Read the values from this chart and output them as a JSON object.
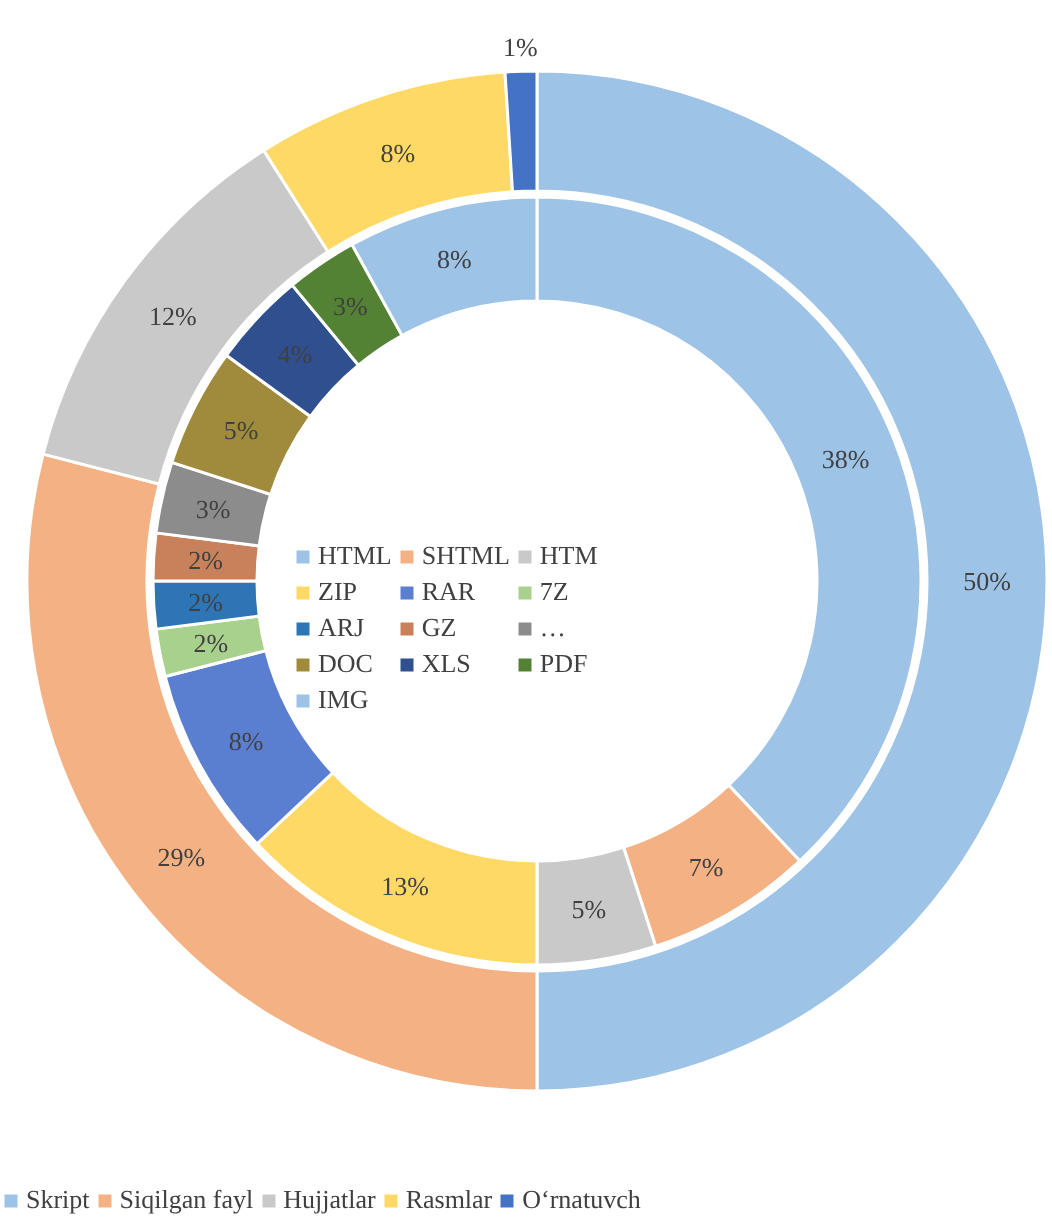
{
  "chart_data": {
    "type": "donut",
    "legend": "bottom",
    "categories": [
      "Skript",
      "Siqilgan fayl",
      "Hujjatlar",
      "Rasmlar",
      "O‘rnatuvch",
      "HTML",
      "SHTML",
      "HTM",
      "ZIP",
      "RAR",
      "7Z",
      "ARJ",
      "GZ",
      "…",
      "DOC",
      "XLS",
      "PDF",
      "IMG"
    ],
    "colors": [
      "#9dc3e6",
      "#f4b183",
      "#c9c9c9",
      "#ffd966",
      "#4472c4",
      "#9dc3e6",
      "#f4b183",
      "#c9c9c9",
      "#ffd966",
      "#5b7fd0",
      "#a9d18e",
      "#2e75b6",
      "#c8815a",
      "#8c8c8c",
      "#a08a3c",
      "#2f4f8f",
      "#548235",
      "#9dc3e6"
    ],
    "series": [
      {
        "values": [
          50,
          29,
          12,
          8,
          1,
          null,
          null,
          null,
          null,
          null,
          null,
          null,
          null,
          null,
          null,
          null,
          null,
          null
        ],
        "value_labels": [
          "50%",
          "29%",
          "12%",
          "8%",
          "1%",
          null,
          null,
          null,
          null,
          null,
          null,
          null,
          null,
          null,
          null,
          null,
          null,
          null
        ]
      },
      {
        "values": [
          null,
          null,
          null,
          null,
          null,
          38,
          7,
          5,
          13,
          8,
          2,
          2,
          2,
          3,
          5,
          4,
          3,
          8
        ],
        "value_labels": [
          null,
          null,
          null,
          null,
          null,
          "38%",
          "7%",
          "5%",
          "13%",
          "8%",
          "2%",
          "2%",
          "2%",
          "3%",
          "5%",
          "4%",
          "3%",
          "8%"
        ]
      }
    ]
  }
}
